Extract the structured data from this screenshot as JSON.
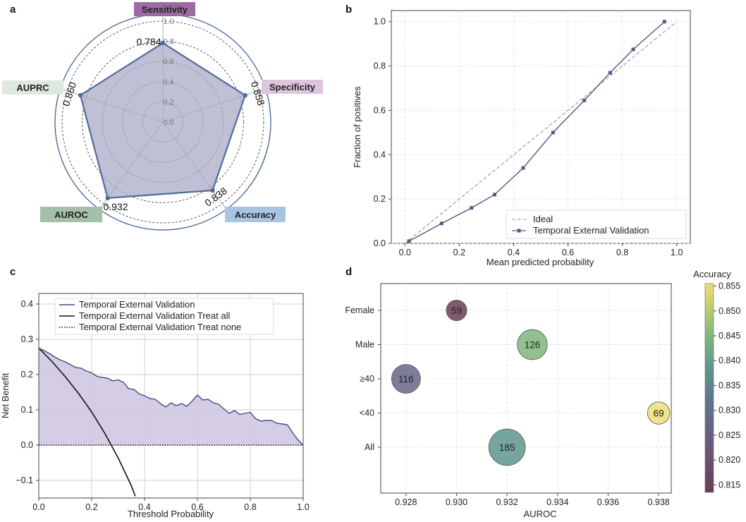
{
  "colors": {
    "radar_line": "#4e6d9a",
    "radar_fill": "#a9a9c8",
    "calib_line": "#4f5b80",
    "ideal_line": "#a6a6a6",
    "dca_line": "#4a4a80",
    "dca_fill": "#cdc4e0",
    "sensitivity_box": "#9c6aa3",
    "specificity_box": "#dfc4dd",
    "accuracy_box": "#a9c4e3",
    "auroc_box": "#a4c0ab",
    "auprc_box": "#dde9dc"
  },
  "chart_data": [
    {
      "panel": "a",
      "type": "radar",
      "categories": [
        "Sensitivity",
        "Specificity",
        "Accuracy",
        "AUROC",
        "AUPRC"
      ],
      "values": [
        0.784,
        0.858,
        0.838,
        0.932,
        0.86
      ],
      "value_labels": [
        "0.784",
        "0.858",
        "0.838",
        "0.932",
        "0.860"
      ],
      "radial_ticks": [
        "0.0",
        "0.2",
        "0.4",
        "0.6",
        "0.8",
        "1.0"
      ],
      "rlim": [
        0,
        1
      ]
    },
    {
      "panel": "b",
      "type": "line",
      "title": "",
      "xlabel": "Mean predicted probability",
      "ylabel": "Fraction of positives",
      "xlim": [
        -0.05,
        1.05
      ],
      "ylim": [
        0,
        1.05
      ],
      "xticks": [
        "0.0",
        "0.2",
        "0.4",
        "0.6",
        "0.8",
        "1.0"
      ],
      "yticks": [
        "0.0",
        "0.2",
        "0.4",
        "0.6",
        "0.8",
        "1.0"
      ],
      "legend": [
        "Ideal",
        "Temporal External Validation"
      ],
      "series": [
        {
          "name": "Ideal",
          "x": [
            0,
            1
          ],
          "y": [
            0,
            1
          ]
        },
        {
          "name": "Temporal External Validation",
          "x": [
            0.015,
            0.135,
            0.245,
            0.33,
            0.435,
            0.545,
            0.66,
            0.755,
            0.84,
            0.955
          ],
          "y": [
            0.01,
            0.09,
            0.16,
            0.22,
            0.34,
            0.5,
            0.645,
            0.77,
            0.875,
            1.0
          ]
        }
      ]
    },
    {
      "panel": "c",
      "type": "line",
      "title": "",
      "xlabel": "Threshold Probability",
      "ylabel": "Net Benefit",
      "xlim": [
        0,
        1
      ],
      "ylim": [
        -0.15,
        0.43
      ],
      "xticks": [
        "0.0",
        "0.2",
        "0.4",
        "0.6",
        "0.8",
        "1.0"
      ],
      "yticks": [
        "−0.1",
        "0.0",
        "0.1",
        "0.2",
        "0.3",
        "0.4"
      ],
      "legend": [
        "Temporal External Validation",
        "Temporal External Validation Treat all",
        "Temporal External Validation Treat none"
      ],
      "series": [
        {
          "name": "Temporal External Validation",
          "x": [
            0,
            0.02,
            0.04,
            0.06,
            0.08,
            0.1,
            0.12,
            0.14,
            0.16,
            0.18,
            0.2,
            0.22,
            0.24,
            0.26,
            0.28,
            0.3,
            0.32,
            0.34,
            0.36,
            0.38,
            0.4,
            0.42,
            0.44,
            0.46,
            0.48,
            0.5,
            0.52,
            0.54,
            0.56,
            0.58,
            0.6,
            0.62,
            0.64,
            0.66,
            0.68,
            0.7,
            0.72,
            0.74,
            0.76,
            0.78,
            0.8,
            0.82,
            0.84,
            0.86,
            0.88,
            0.9,
            0.92,
            0.94,
            0.96,
            0.98,
            1.0
          ],
          "y": [
            0.275,
            0.268,
            0.26,
            0.25,
            0.242,
            0.236,
            0.228,
            0.22,
            0.218,
            0.21,
            0.205,
            0.195,
            0.192,
            0.19,
            0.182,
            0.185,
            0.178,
            0.16,
            0.158,
            0.145,
            0.14,
            0.132,
            0.13,
            0.118,
            0.108,
            0.12,
            0.112,
            0.118,
            0.11,
            0.125,
            0.142,
            0.128,
            0.13,
            0.12,
            0.116,
            0.103,
            0.09,
            0.098,
            0.087,
            0.09,
            0.093,
            0.075,
            0.068,
            0.07,
            0.07,
            0.062,
            0.06,
            0.058,
            0.035,
            0.015,
            0.0
          ]
        },
        {
          "name": "Temporal External Validation Treat all",
          "x": [
            0,
            0.05,
            0.1,
            0.15,
            0.2,
            0.25,
            0.3,
            0.35,
            0.365
          ],
          "y": [
            0.275,
            0.237,
            0.194,
            0.147,
            0.094,
            0.033,
            -0.036,
            -0.115,
            -0.145
          ]
        },
        {
          "name": "Temporal External Validation Treat none",
          "x": [
            0,
            1
          ],
          "y": [
            0,
            0
          ]
        }
      ]
    },
    {
      "panel": "d",
      "type": "scatter",
      "title": "",
      "xlabel": "AUROC",
      "ylabel": "",
      "colorbar_label": "Accuracy",
      "xlim": [
        0.927,
        0.9385
      ],
      "xticks": [
        "0.928",
        "0.930",
        "0.932",
        "0.934",
        "0.936",
        "0.938"
      ],
      "categories": [
        "Female",
        "Male",
        "≥40",
        "<40",
        "All"
      ],
      "colorbar_ticks": [
        "0.815",
        "0.820",
        "0.825",
        "0.830",
        "0.835",
        "0.840",
        "0.845",
        "0.850",
        "0.855"
      ],
      "colorbar_range": [
        0.8135,
        0.8555
      ],
      "points": [
        {
          "group": "Female",
          "auroc": 0.93,
          "accuracy": 0.8135,
          "n": "59"
        },
        {
          "group": "Male",
          "auroc": 0.933,
          "accuracy": 0.845,
          "n": "126"
        },
        {
          "group": "≥40",
          "auroc": 0.928,
          "accuracy": 0.827,
          "n": "116"
        },
        {
          "group": "<40",
          "auroc": 0.938,
          "accuracy": 0.8555,
          "n": "69"
        },
        {
          "group": "All",
          "auroc": 0.932,
          "accuracy": 0.838,
          "n": "185"
        }
      ]
    }
  ],
  "panels": {
    "a": "a",
    "b": "b",
    "c": "c",
    "d": "d"
  }
}
